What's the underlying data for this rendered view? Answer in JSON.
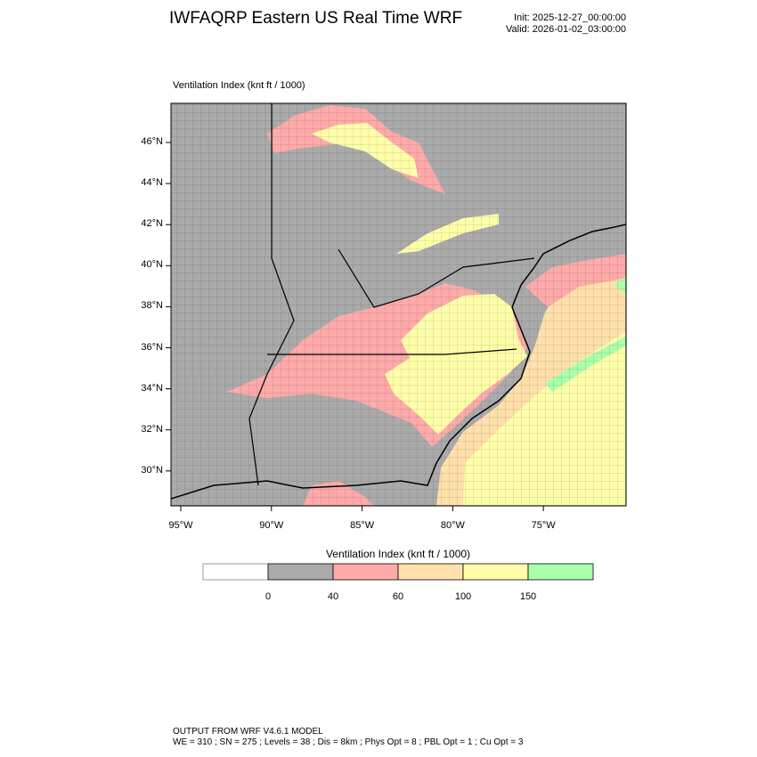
{
  "header": {
    "title": "IWFAQRP Eastern US Real Time WRF",
    "init": "Init: 2025-12-27_00:00:00",
    "valid": "Valid: 2026-01-02_03:00:00"
  },
  "plot": {
    "field_label": "Ventilation Index   (knt ft / 1000)",
    "lat_ticks": [
      "46°N",
      "44°N",
      "42°N",
      "40°N",
      "38°N",
      "36°N",
      "34°N",
      "32°N",
      "30°N"
    ],
    "lon_ticks": [
      "95°W",
      "90°W",
      "85°W",
      "80°W",
      "75°W"
    ],
    "background_color": "#aaaaaa"
  },
  "colorbar": {
    "title": "Ventilation Index  (knt ft / 1000)",
    "labels": [
      "0",
      "40",
      "60",
      "100",
      "150"
    ],
    "colors": [
      "#ffffff",
      "#aaaaaa",
      "#ffaaaa",
      "#ffe0aa",
      "#ffffaa",
      "#aaffaa"
    ]
  },
  "footer": {
    "line1": "OUTPUT FROM WRF V4.6.1 MODEL",
    "line2": "WE = 310 ; SN = 275 ; Levels = 38 ; Dis = 8km ; Phys Opt = 8 ; PBL Opt = 1 ; Cu Opt = 3"
  }
}
